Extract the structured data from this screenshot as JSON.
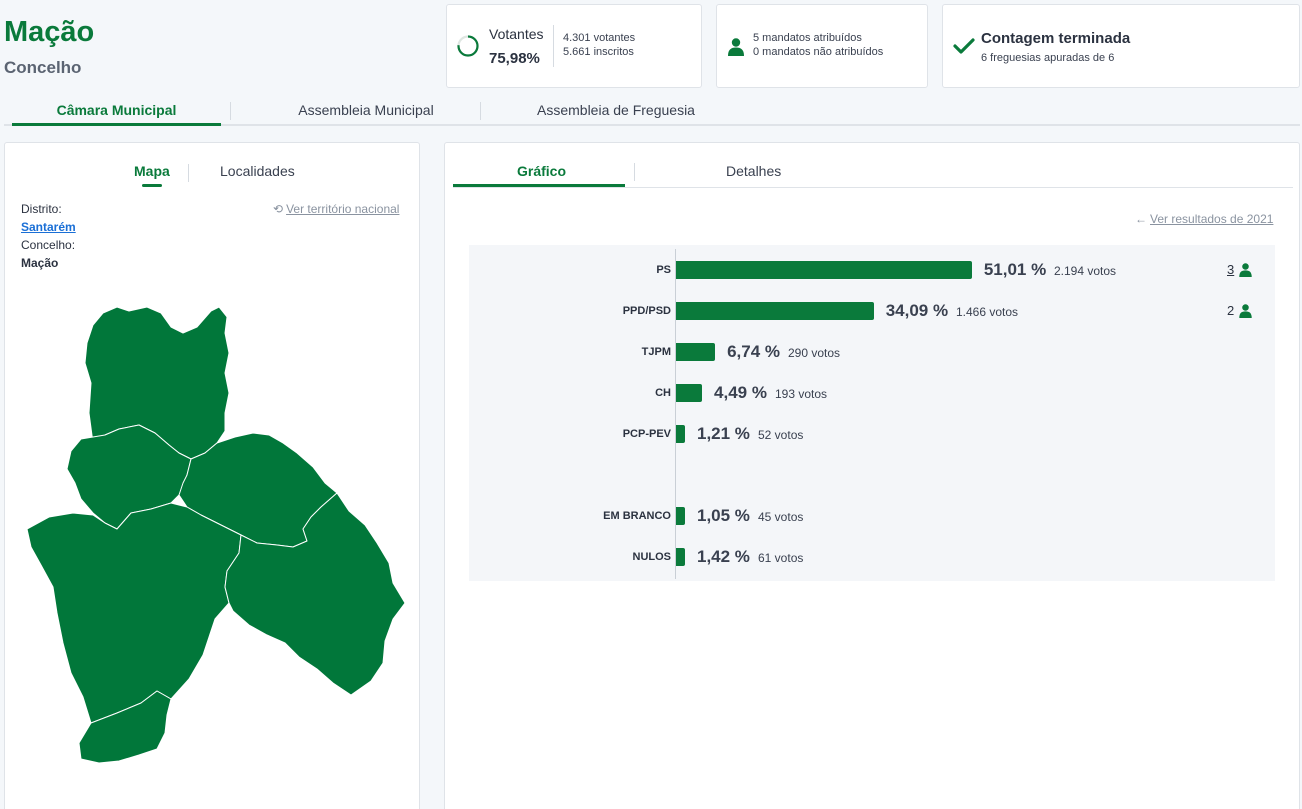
{
  "header": {
    "title": "Mação",
    "subtitle": "Concelho"
  },
  "votantes": {
    "label": "Votantes",
    "pct": "75,98%",
    "progress": 0.7598,
    "line1": "4.301 votantes",
    "line2": "5.661 inscritos"
  },
  "mandatos": {
    "line1": "5 mandatos atribuídos",
    "line2": "0 mandatos não atribuídos"
  },
  "contagem": {
    "title": "Contagem terminada",
    "sub": "6 freguesias apuradas de 6"
  },
  "main_tabs": [
    {
      "label": "Câmara Municipal"
    },
    {
      "label": "Assembleia Municipal"
    },
    {
      "label": "Assembleia de Freguesia"
    }
  ],
  "left_tabs": [
    {
      "label": "Mapa"
    },
    {
      "label": "Localidades"
    }
  ],
  "info": {
    "distrito_label": "Distrito:",
    "distrito_value": "Santarém",
    "concelho_label": "Concelho:",
    "concelho_value": "Mação",
    "ver_territorio": "Ver território nacional"
  },
  "right_tabs": [
    {
      "label": "Gráfico"
    },
    {
      "label": "Detalhes"
    }
  ],
  "ver_resultados": "Ver resultados de 2021",
  "colors": {
    "accent": "#0a7a3b",
    "map_fill": "#01773a"
  },
  "chart_data": {
    "type": "bar",
    "orientation": "horizontal",
    "categories": [
      "PS",
      "PPD/PSD",
      "TJPM",
      "CH",
      "PCP-PEV",
      "EM BRANCO",
      "NULOS"
    ],
    "values": [
      51.01,
      34.09,
      6.74,
      4.49,
      1.21,
      1.05,
      1.42
    ],
    "pct_labels": [
      "51,01 %",
      "34,09 %",
      "6,74 %",
      "4,49 %",
      "1,21 %",
      "1,05 %",
      "1,42 %"
    ],
    "vote_labels": [
      "2.194 votos",
      "1.466 votos",
      "290 votos",
      "193 votos",
      "52 votos",
      "45 votos",
      "61 votos"
    ],
    "mandates": [
      "3",
      "2"
    ],
    "unit": "%"
  }
}
